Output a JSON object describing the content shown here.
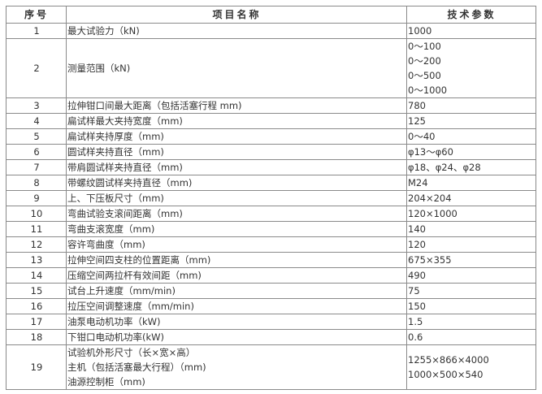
{
  "table": {
    "headers": [
      "序号",
      "项目名称",
      "技术参数"
    ],
    "rows": [
      {
        "no": "1",
        "name": [
          "最大试验力（kN)"
        ],
        "value": [
          "1000"
        ]
      },
      {
        "no": "2",
        "name": [
          "测量范围（kN)"
        ],
        "value": [
          "0～100",
          "0～200",
          "0～500",
          "0～1000"
        ]
      },
      {
        "no": "3",
        "name": [
          "拉伸钳口间最大距离（包括活塞行程 mm)"
        ],
        "value": [
          "780"
        ]
      },
      {
        "no": "4",
        "name": [
          "扁试样最大夹持宽度（mm)"
        ],
        "value": [
          "125"
        ]
      },
      {
        "no": "5",
        "name": [
          "扁试样夹持厚度（mm)"
        ],
        "value": [
          "0～40"
        ]
      },
      {
        "no": "6",
        "name": [
          "圆试样夹持直径（mm)"
        ],
        "value": [
          "φ13～φ60"
        ]
      },
      {
        "no": "7",
        "name": [
          "带肩圆试样夹持直径（mm)"
        ],
        "value": [
          "φ18、φ24、φ28"
        ]
      },
      {
        "no": "8",
        "name": [
          "带螺纹圆试样夹持直径（mm)"
        ],
        "value": [
          "M24"
        ]
      },
      {
        "no": "9",
        "name": [
          "上、下压板尺寸（mm)"
        ],
        "value": [
          "204×204"
        ]
      },
      {
        "no": "10",
        "name": [
          "弯曲试验支滚间距离（mm)"
        ],
        "value": [
          "120×1000"
        ]
      },
      {
        "no": "11",
        "name": [
          "弯曲支滚宽度（mm)"
        ],
        "value": [
          "140"
        ]
      },
      {
        "no": "12",
        "name": [
          "容许弯曲度（mm)"
        ],
        "value": [
          "120"
        ]
      },
      {
        "no": "13",
        "name": [
          "拉伸空间四支柱的位置距离（mm)"
        ],
        "value": [
          "675×355"
        ]
      },
      {
        "no": "14",
        "name": [
          "压缩空间两拉杆有效间距（mm)"
        ],
        "value": [
          "490"
        ]
      },
      {
        "no": "15",
        "name": [
          "试台上升速度（mm/min)"
        ],
        "value": [
          "75"
        ]
      },
      {
        "no": "16",
        "name": [
          "拉压空间调整速度（mm/min)"
        ],
        "value": [
          "150"
        ]
      },
      {
        "no": "17",
        "name": [
          "油泵电动机功率（kW)"
        ],
        "value": [
          "1.5"
        ]
      },
      {
        "no": "18",
        "name": [
          "下钳口电动机功率(kW)"
        ],
        "value": [
          "0.6"
        ]
      },
      {
        "no": "19",
        "name": [
          "试验机外形尺寸（长×宽×高）",
          "主机（包括活塞最大行程）（mm)",
          "油源控制柜（mm)"
        ],
        "value": [
          "1255×866×4000",
          "1000×500×540"
        ]
      }
    ]
  }
}
